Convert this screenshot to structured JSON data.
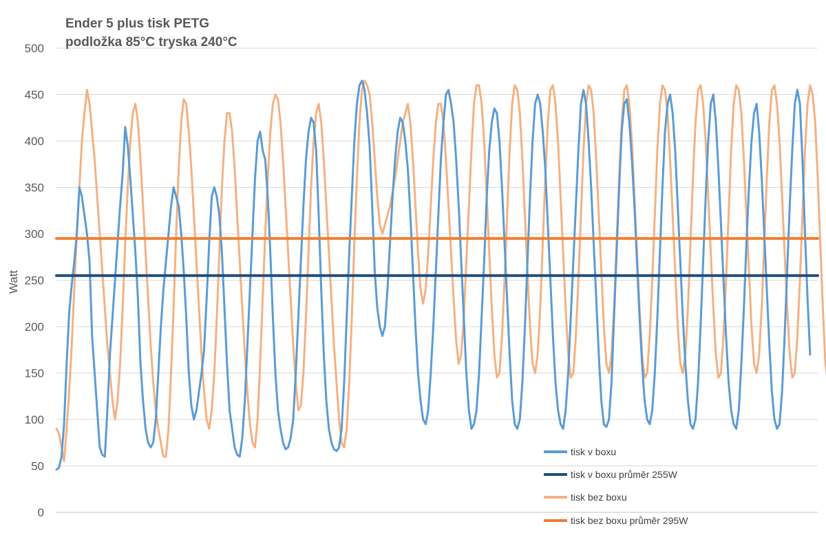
{
  "chart_data": {
    "type": "line",
    "title_lines": [
      "Ender 5 plus tisk PETG",
      "podložka 85°C tryska 240°C"
    ],
    "ylabel": "Watt",
    "xlabel": "",
    "ylim": [
      0,
      500
    ],
    "yticks": [
      0,
      50,
      100,
      150,
      200,
      250,
      300,
      350,
      400,
      450,
      500
    ],
    "grid": true,
    "legend_position": "bottom-right",
    "sample_count": 300,
    "series": [
      {
        "name": "tisk v boxu",
        "color": "#5b9bd5",
        "values": [
          46,
          48,
          60,
          95,
          160,
          215,
          245,
          270,
          300,
          350,
          340,
          320,
          300,
          270,
          190,
          150,
          110,
          70,
          62,
          60,
          110,
          170,
          210,
          250,
          290,
          330,
          365,
          415,
          395,
          360,
          320,
          280,
          230,
          160,
          120,
          90,
          75,
          70,
          75,
          100,
          150,
          200,
          240,
          270,
          300,
          330,
          350,
          340,
          330,
          300,
          260,
          210,
          150,
          115,
          100,
          110,
          130,
          150,
          175,
          230,
          290,
          340,
          350,
          340,
          320,
          280,
          220,
          160,
          110,
          90,
          70,
          62,
          60,
          80,
          120,
          180,
          240,
          300,
          360,
          400,
          410,
          390,
          380,
          340,
          280,
          210,
          150,
          110,
          90,
          75,
          68,
          70,
          80,
          100,
          150,
          210,
          270,
          330,
          380,
          410,
          425,
          420,
          390,
          320,
          240,
          170,
          120,
          90,
          75,
          68,
          66,
          70,
          90,
          140,
          210,
          280,
          340,
          400,
          440,
          460,
          465,
          455,
          430,
          395,
          330,
          260,
          220,
          200,
          190,
          200,
          240,
          290,
          340,
          380,
          410,
          425,
          420,
          400,
          370,
          320,
          260,
          200,
          150,
          120,
          100,
          95,
          110,
          150,
          200,
          260,
          320,
          380,
          420,
          450,
          455,
          440,
          420,
          380,
          330,
          270,
          210,
          150,
          110,
          90,
          95,
          110,
          150,
          210,
          270,
          340,
          390,
          420,
          435,
          430,
          400,
          350,
          290,
          230,
          170,
          120,
          95,
          90,
          100,
          140,
          200,
          270,
          340,
          400,
          440,
          450,
          440,
          410,
          370,
          310,
          250,
          190,
          140,
          110,
          95,
          90,
          110,
          150,
          210,
          270,
          330,
          390,
          440,
          455,
          440,
          400,
          350,
          290,
          230,
          170,
          120,
          95,
          92,
          100,
          140,
          210,
          280,
          350,
          410,
          440,
          445,
          420,
          380,
          330,
          270,
          210,
          160,
          120,
          100,
          95,
          110,
          150,
          210,
          280,
          350,
          410,
          440,
          450,
          430,
          390,
          330,
          270,
          210,
          160,
          120,
          95,
          90,
          100,
          140,
          200,
          270,
          340,
          400,
          440,
          450,
          420,
          370,
          310,
          250,
          190,
          140,
          110,
          95,
          90,
          110,
          160,
          220,
          290,
          350,
          400,
          430,
          440,
          410,
          360,
          300,
          240,
          180,
          130,
          100,
          90,
          95,
          130,
          190,
          260,
          330,
          390,
          440,
          455,
          440,
          380,
          300,
          230,
          170
        ]
      },
      {
        "name": "tisk v boxu průměr 255W",
        "color": "#1f4e79",
        "constant": 255
      },
      {
        "name": "tisk bez boxu",
        "color": "#f4b183",
        "values": [
          90,
          85,
          70,
          55,
          90,
          130,
          180,
          240,
          300,
          350,
          400,
          430,
          455,
          440,
          410,
          380,
          340,
          300,
          260,
          220,
          180,
          150,
          120,
          100,
          120,
          160,
          220,
          290,
          350,
          400,
          430,
          440,
          420,
          380,
          330,
          280,
          230,
          180,
          140,
          110,
          90,
          75,
          60,
          60,
          90,
          150,
          220,
          300,
          370,
          420,
          445,
          440,
          410,
          370,
          320,
          270,
          220,
          170,
          130,
          100,
          90,
          110,
          150,
          210,
          280,
          350,
          400,
          430,
          430,
          410,
          370,
          320,
          270,
          220,
          170,
          130,
          95,
          75,
          70,
          100,
          160,
          230,
          300,
          360,
          410,
          440,
          450,
          445,
          420,
          380,
          330,
          280,
          230,
          180,
          140,
          110,
          115,
          150,
          210,
          280,
          350,
          400,
          430,
          440,
          420,
          380,
          330,
          280,
          230,
          180,
          140,
          100,
          75,
          70,
          90,
          140,
          210,
          290,
          360,
          420,
          455,
          465,
          460,
          450,
          420,
          380,
          340,
          310,
          300,
          310,
          320,
          330,
          345,
          360,
          380,
          400,
          420,
          430,
          440,
          420,
          380,
          330,
          280,
          240,
          225,
          240,
          280,
          330,
          380,
          420,
          440,
          440,
          420,
          380,
          330,
          280,
          230,
          185,
          160,
          170,
          210,
          270,
          330,
          390,
          440,
          460,
          460,
          440,
          400,
          340,
          280,
          220,
          170,
          145,
          150,
          190,
          250,
          320,
          390,
          440,
          460,
          455,
          430,
          380,
          320,
          260,
          200,
          160,
          150,
          170,
          220,
          290,
          360,
          420,
          455,
          460,
          440,
          400,
          340,
          280,
          220,
          170,
          145,
          150,
          190,
          250,
          320,
          390,
          440,
          460,
          455,
          430,
          380,
          320,
          260,
          200,
          160,
          150,
          170,
          220,
          290,
          360,
          420,
          455,
          460,
          440,
          400,
          340,
          280,
          220,
          170,
          145,
          150,
          190,
          250,
          320,
          390,
          440,
          460,
          455,
          430,
          380,
          320,
          260,
          200,
          160,
          150,
          170,
          220,
          290,
          360,
          420,
          455,
          460,
          440,
          400,
          340,
          280,
          220,
          170,
          145,
          150,
          190,
          250,
          320,
          390,
          440,
          460,
          455,
          430,
          380,
          320,
          260,
          200,
          160,
          150,
          170,
          220,
          290,
          360,
          420,
          455,
          460,
          440,
          400,
          340,
          280,
          220,
          170,
          145,
          150,
          190,
          250,
          320,
          390,
          440,
          460,
          450,
          420,
          360,
          290,
          220,
          160,
          140,
          150,
          200,
          260
        ]
      },
      {
        "name": "tisk bez boxu průměr 295W",
        "color": "#ed7d31",
        "constant": 295
      }
    ]
  }
}
